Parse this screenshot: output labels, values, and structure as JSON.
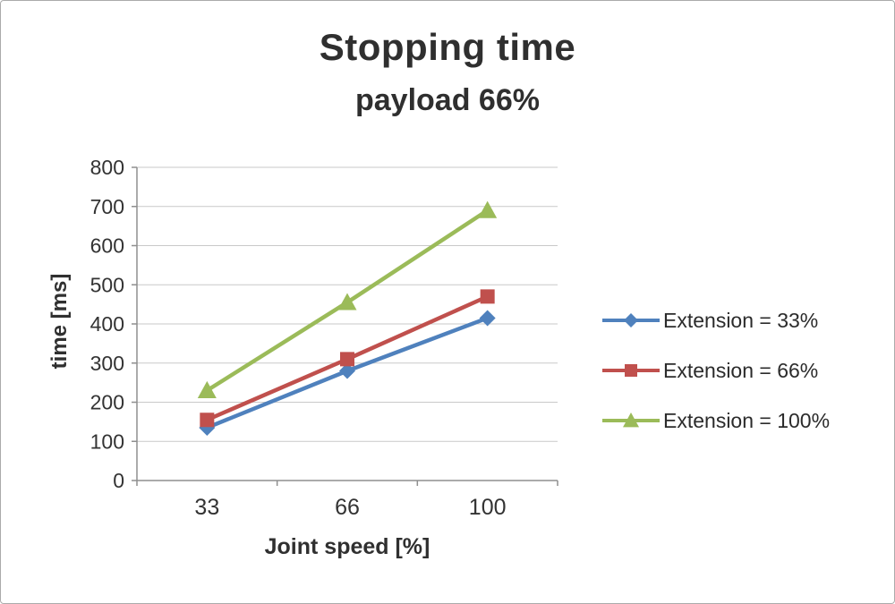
{
  "chart_data": {
    "type": "line",
    "title": "Stopping time",
    "subtitle": "payload 66%",
    "xlabel": "Joint speed [%]",
    "ylabel": "time [ms]",
    "categories": [
      33,
      66,
      100
    ],
    "x_tick_labels": [
      "33",
      "66",
      "100"
    ],
    "yticks": [
      0,
      100,
      200,
      300,
      400,
      500,
      600,
      700,
      800
    ],
    "ylim": [
      0,
      800
    ],
    "grid": true,
    "legend_position": "right",
    "series": [
      {
        "name": "Extension = 33%",
        "color": "#4F81BD",
        "marker": "diamond",
        "values": [
          135,
          280,
          415
        ]
      },
      {
        "name": "Extension = 66%",
        "color": "#C0504D",
        "marker": "square",
        "values": [
          155,
          310,
          470
        ]
      },
      {
        "name": "Extension = 100%",
        "color": "#9BBB59",
        "marker": "triangle",
        "values": [
          230,
          455,
          690
        ]
      }
    ]
  }
}
